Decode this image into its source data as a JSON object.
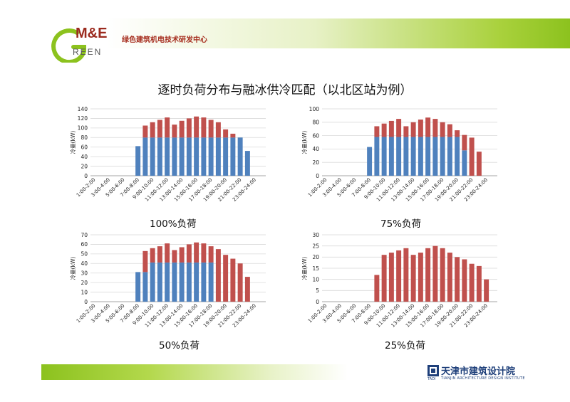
{
  "header": {
    "logo_me": "M&E",
    "logo_green": "REEN",
    "org_name": "绿色建筑机电技术研发中心"
  },
  "title": "逐时负荷分布与融冰供冷匹配（以北区站为例）",
  "footer": {
    "org_name": "天津市建筑设计院",
    "org_en": "TIANJIN ARCHITECTURE DESIGN INSTITUTE",
    "org_abbr": "TADI"
  },
  "colors": {
    "blue": "#4f81bd",
    "red": "#c0504d",
    "grid": "#d9d9d9"
  },
  "chart_data": [
    {
      "type": "bar",
      "stacked": true,
      "caption": "100%负荷",
      "ylabel": "冷量(kW)",
      "ylim": [
        0,
        140
      ],
      "yticks": [
        0,
        20,
        40,
        60,
        80,
        100,
        120,
        140
      ],
      "categories": [
        "1:00-2:00",
        "2:00-3:00",
        "3:00-4:00",
        "4:00-5:00",
        "5:00-6:00",
        "6:00-7:00",
        "7:00-8:00",
        "8:00-9:00",
        "9:00-10:00",
        "10:00-11:00",
        "11:00-12:00",
        "12:00-13:00",
        "13:00-14:00",
        "14:00-15:00",
        "15:00-16:00",
        "16:00-17:00",
        "17:00-18:00",
        "18:00-19:00",
        "19:00-20:00",
        "20:00-21:00",
        "21:00-22:00",
        "22:00-23:00",
        "23:00-24:00",
        "24:00-1:00"
      ],
      "tick_every": 2,
      "series": [
        {
          "color": "#4f81bd",
          "values": [
            0,
            0,
            0,
            0,
            0,
            0,
            62,
            80,
            80,
            80,
            80,
            80,
            80,
            80,
            80,
            80,
            80,
            80,
            80,
            80,
            80,
            52,
            0,
            0
          ]
        },
        {
          "color": "#c0504d",
          "values": [
            0,
            0,
            0,
            0,
            0,
            0,
            0,
            25,
            32,
            37,
            42,
            27,
            35,
            40,
            44,
            42,
            37,
            32,
            17,
            8,
            0,
            0,
            0,
            0
          ]
        }
      ]
    },
    {
      "type": "bar",
      "stacked": true,
      "caption": "75%负荷",
      "ylabel": "冷量(kW)",
      "ylim": [
        0,
        100
      ],
      "yticks": [
        0,
        20,
        40,
        60,
        80,
        100
      ],
      "categories": [
        "1:00-2:00",
        "2:00-3:00",
        "3:00-4:00",
        "4:00-5:00",
        "5:00-6:00",
        "6:00-7:00",
        "7:00-8:00",
        "8:00-9:00",
        "9:00-10:00",
        "10:00-11:00",
        "11:00-12:00",
        "12:00-13:00",
        "13:00-14:00",
        "14:00-15:00",
        "15:00-16:00",
        "16:00-17:00",
        "17:00-18:00",
        "18:00-19:00",
        "19:00-20:00",
        "20:00-21:00",
        "21:00-22:00",
        "22:00-23:00",
        "23:00-24:00",
        "24:00-1:00"
      ],
      "tick_every": 2,
      "series": [
        {
          "color": "#4f81bd",
          "values": [
            0,
            0,
            0,
            0,
            0,
            0,
            43,
            58,
            58,
            58,
            58,
            58,
            58,
            58,
            58,
            58,
            58,
            58,
            58,
            38,
            0,
            0,
            0,
            0
          ]
        },
        {
          "color": "#c0504d",
          "values": [
            0,
            0,
            0,
            0,
            0,
            0,
            0,
            16,
            20,
            24,
            27,
            16,
            22,
            26,
            29,
            27,
            22,
            19,
            10,
            23,
            57,
            36,
            0,
            0
          ]
        }
      ]
    },
    {
      "type": "bar",
      "stacked": true,
      "caption": "50%负荷",
      "ylabel": "冷量(kW)",
      "ylim": [
        0,
        70
      ],
      "yticks": [
        0,
        10,
        20,
        30,
        40,
        50,
        60,
        70
      ],
      "categories": [
        "1:00-2:00",
        "2:00-3:00",
        "3:00-4:00",
        "4:00-5:00",
        "5:00-6:00",
        "6:00-7:00",
        "7:00-8:00",
        "8:00-9:00",
        "9:00-10:00",
        "10:00-11:00",
        "11:00-12:00",
        "12:00-13:00",
        "13:00-14:00",
        "14:00-15:00",
        "15:00-16:00",
        "16:00-17:00",
        "17:00-18:00",
        "18:00-19:00",
        "19:00-20:00",
        "20:00-21:00",
        "21:00-22:00",
        "22:00-23:00",
        "23:00-24:00",
        "24:00-1:00"
      ],
      "tick_every": 2,
      "series": [
        {
          "color": "#4f81bd",
          "values": [
            0,
            0,
            0,
            0,
            0,
            0,
            31,
            31,
            41,
            41,
            41,
            41,
            41,
            41,
            41,
            41,
            41,
            0,
            0,
            0,
            0,
            0,
            0,
            0
          ]
        },
        {
          "color": "#c0504d",
          "values": [
            0,
            0,
            0,
            0,
            0,
            0,
            0,
            22,
            15,
            17,
            20,
            13,
            16,
            19,
            21,
            20,
            17,
            55,
            49,
            45,
            40,
            26,
            0,
            0
          ]
        }
      ]
    },
    {
      "type": "bar",
      "stacked": true,
      "caption": "25%负荷",
      "ylabel": "冷量(kW)",
      "ylim": [
        0,
        30
      ],
      "yticks": [
        0,
        5,
        10,
        15,
        20,
        25,
        30
      ],
      "categories": [
        "1:00-2:00",
        "2:00-3:00",
        "3:00-4:00",
        "4:00-5:00",
        "5:00-6:00",
        "6:00-7:00",
        "7:00-8:00",
        "8:00-9:00",
        "9:00-10:00",
        "10:00-11:00",
        "11:00-12:00",
        "12:00-13:00",
        "13:00-14:00",
        "14:00-15:00",
        "15:00-16:00",
        "16:00-17:00",
        "17:00-18:00",
        "18:00-19:00",
        "19:00-20:00",
        "20:00-21:00",
        "21:00-22:00",
        "22:00-23:00",
        "23:00-24:00",
        "24:00-1:00"
      ],
      "tick_every": 2,
      "series": [
        {
          "color": "#4f81bd",
          "values": [
            0,
            0,
            0,
            0,
            0,
            0,
            0,
            0,
            0,
            0,
            0,
            0,
            0,
            0,
            0,
            0,
            0,
            0,
            0,
            0,
            0,
            0,
            0,
            0
          ]
        },
        {
          "color": "#c0504d",
          "values": [
            0,
            0,
            0,
            0,
            0,
            0,
            0,
            12,
            21,
            22,
            23,
            24,
            21,
            22,
            24,
            25,
            24,
            22,
            20,
            19,
            17,
            16,
            10,
            0
          ]
        }
      ]
    }
  ]
}
